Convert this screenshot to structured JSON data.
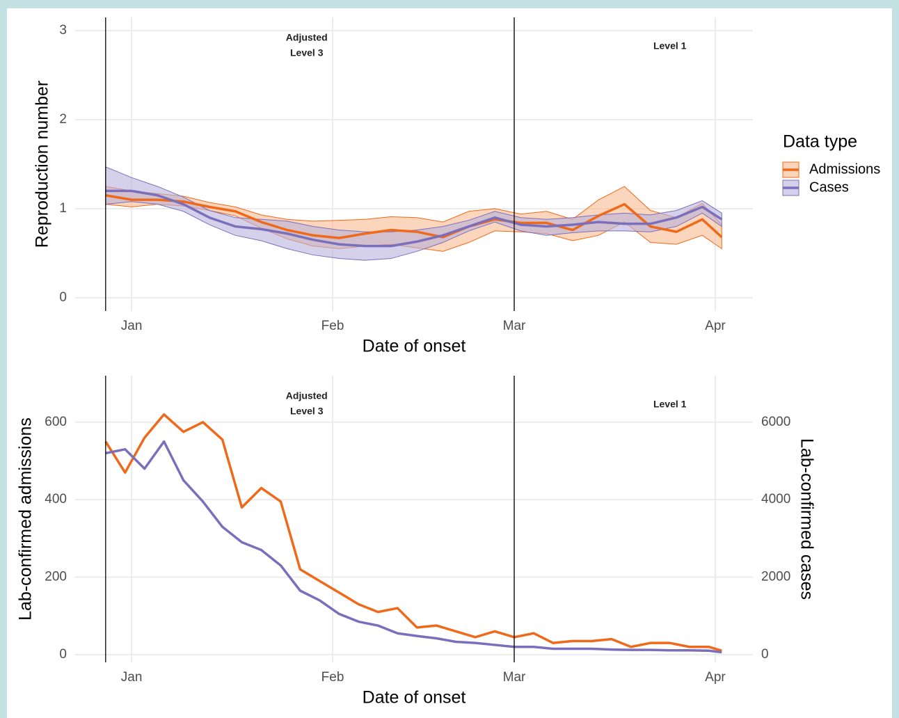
{
  "chart_data": [
    {
      "type": "line",
      "x": [
        -4,
        0,
        4,
        8,
        12,
        16,
        20,
        24,
        28,
        32,
        36,
        40,
        44,
        48,
        52,
        56,
        60,
        64,
        68,
        72,
        76,
        80,
        84,
        88,
        91
      ],
      "xlim": [
        -8.7,
        95.8
      ],
      "xticks": [
        {
          "value": 0,
          "label": "Jan"
        },
        {
          "value": 31,
          "label": "Feb"
        },
        {
          "value": 59,
          "label": "Mar"
        },
        {
          "value": 90,
          "label": "Apr"
        }
      ],
      "ylim": [
        -0.15,
        3.15
      ],
      "yticks": [
        0,
        1,
        2,
        3
      ],
      "x_label": "Date of onset",
      "y_label": "Reproduction number",
      "vlines": [
        -4,
        59
      ],
      "annotations": [
        [
          "Adjusted",
          "Level 3"
        ],
        [
          "Level 1"
        ]
      ],
      "grid": true,
      "legend": "right",
      "legend_title": "Data type",
      "series": [
        {
          "name": "Admissions",
          "color": "#ee6a1a",
          "fill": "#f8b98f",
          "values": [
            1.15,
            1.1,
            1.1,
            1.08,
            1.02,
            0.97,
            0.85,
            0.76,
            0.7,
            0.67,
            0.72,
            0.76,
            0.74,
            0.68,
            0.8,
            0.88,
            0.84,
            0.84,
            0.76,
            0.92,
            1.05,
            0.8,
            0.74,
            0.88,
            0.68
          ],
          "lower": [
            1.05,
            1.02,
            1.05,
            1.03,
            0.98,
            0.92,
            0.78,
            0.66,
            0.58,
            0.55,
            0.58,
            0.6,
            0.56,
            0.52,
            0.62,
            0.75,
            0.74,
            0.72,
            0.64,
            0.7,
            0.85,
            0.62,
            0.6,
            0.7,
            0.55
          ],
          "upper": [
            1.25,
            1.2,
            1.17,
            1.14,
            1.07,
            1.02,
            0.93,
            0.88,
            0.86,
            0.87,
            0.88,
            0.91,
            0.9,
            0.85,
            0.97,
            1.0,
            0.94,
            0.97,
            0.88,
            1.1,
            1.25,
            0.98,
            0.9,
            1.06,
            0.82
          ]
        },
        {
          "name": "Cases",
          "color": "#7b6fbb",
          "fill": "#b9b2dc",
          "values": [
            1.2,
            1.2,
            1.15,
            1.05,
            0.9,
            0.8,
            0.77,
            0.72,
            0.65,
            0.6,
            0.58,
            0.58,
            0.63,
            0.7,
            0.8,
            0.9,
            0.82,
            0.8,
            0.82,
            0.85,
            0.83,
            0.83,
            0.9,
            1.02,
            0.88
          ],
          "lower": [
            1.05,
            1.08,
            1.05,
            0.97,
            0.82,
            0.7,
            0.64,
            0.55,
            0.48,
            0.44,
            0.42,
            0.44,
            0.52,
            0.62,
            0.75,
            0.85,
            0.75,
            0.7,
            0.73,
            0.75,
            0.75,
            0.74,
            0.8,
            0.95,
            0.8
          ],
          "upper": [
            1.47,
            1.35,
            1.25,
            1.13,
            0.98,
            0.9,
            0.88,
            0.86,
            0.8,
            0.76,
            0.74,
            0.74,
            0.76,
            0.8,
            0.87,
            0.97,
            0.9,
            0.88,
            0.9,
            0.93,
            0.95,
            0.93,
            0.98,
            1.09,
            0.95
          ]
        }
      ]
    },
    {
      "type": "line",
      "x": [
        -4,
        -1,
        2,
        5,
        8,
        11,
        14,
        17,
        20,
        23,
        26,
        29,
        32,
        35,
        38,
        41,
        44,
        47,
        50,
        53,
        56,
        59,
        62,
        65,
        68,
        71,
        74,
        77,
        80,
        83,
        86,
        89,
        91
      ],
      "xlim": [
        -8.7,
        95.8
      ],
      "xticks": [
        {
          "value": 0,
          "label": "Jan"
        },
        {
          "value": 31,
          "label": "Feb"
        },
        {
          "value": 59,
          "label": "Mar"
        },
        {
          "value": 90,
          "label": "Apr"
        }
      ],
      "ylim": [
        -20,
        720
      ],
      "yticks": [
        0,
        200,
        400,
        600
      ],
      "y2lim": [
        -200,
        7200
      ],
      "y2ticks": [
        0,
        2000,
        4000,
        6000
      ],
      "x_label": "Date of onset",
      "y_label": "Lab-confirmed admissions",
      "y2_label": "Lab-confirmed cases",
      "vlines": [
        -4,
        59
      ],
      "annotations": [
        [
          "Adjusted",
          "Level 3"
        ],
        [
          "Level 1"
        ]
      ],
      "grid": true,
      "series": [
        {
          "name": "Admissions",
          "color": "#ee6a1a",
          "values": [
            550,
            470,
            560,
            620,
            575,
            600,
            555,
            380,
            430,
            395,
            220,
            190,
            160,
            130,
            110,
            120,
            70,
            75,
            60,
            45,
            60,
            45,
            55,
            30,
            35,
            35,
            40,
            20,
            30,
            30,
            20,
            20,
            10
          ]
        },
        {
          "name": "Cases",
          "color": "#7b6fbb",
          "axis": "y2",
          "values": [
            5200,
            5300,
            4800,
            5500,
            4500,
            3950,
            3300,
            2900,
            2700,
            2300,
            1650,
            1400,
            1050,
            850,
            750,
            550,
            480,
            420,
            330,
            300,
            250,
            200,
            200,
            150,
            150,
            150,
            130,
            120,
            120,
            110,
            110,
            100,
            60
          ]
        }
      ]
    }
  ]
}
